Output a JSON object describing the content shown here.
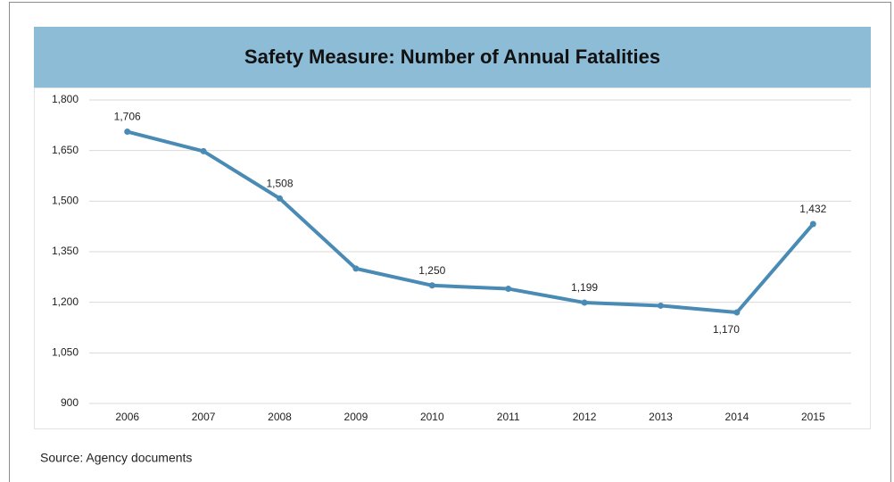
{
  "chart_data": {
    "type": "line",
    "title": "Safety Measure: Number of Annual Fatalities",
    "source": "Source: Agency documents",
    "categories": [
      "2006",
      "2007",
      "2008",
      "2009",
      "2010",
      "2011",
      "2012",
      "2013",
      "2014",
      "2015"
    ],
    "series": [
      {
        "name": "Fatalities",
        "color": "#4a8bb5",
        "values": [
          1706,
          1648,
          1508,
          1300,
          1250,
          1240,
          1199,
          1190,
          1170,
          1432
        ],
        "value_labels": [
          "1,706",
          null,
          "1,508",
          null,
          "1,250",
          null,
          "1,199",
          null,
          "1,170",
          "1,432"
        ]
      }
    ],
    "ylim": [
      900,
      1800
    ],
    "yticks": [
      900,
      {
        "value": 1050,
        "label": "1,050"
      },
      {
        "value": 1200,
        "label": "1,200"
      },
      {
        "value": 1350,
        "label": "1,350"
      },
      {
        "value": 1500,
        "label": "1,500"
      },
      {
        "value": 1650,
        "label": "1,650"
      },
      {
        "value": 1800,
        "label": "1,800"
      }
    ],
    "grid": true
  }
}
